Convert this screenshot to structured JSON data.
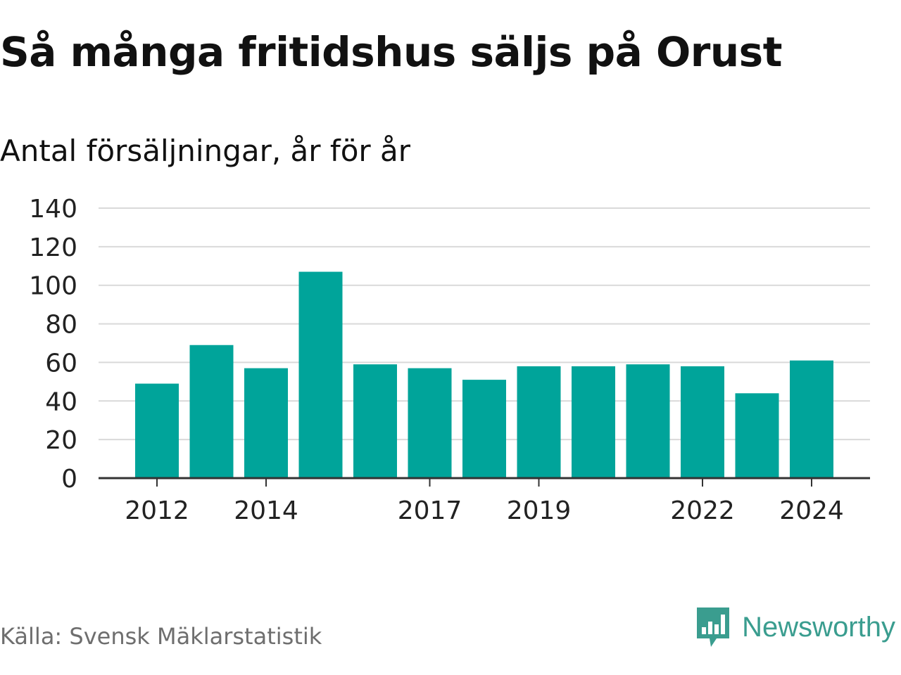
{
  "title": "Så många fritidshus säljs på Orust",
  "subtitle": "Antal försäljningar, år för år",
  "source": "Källa: Svensk Mäklarstatistik",
  "brand": "Newsworthy",
  "colors": {
    "bar": "#00a49a",
    "grid": "#d9d9d9",
    "axis": "#333333",
    "brand": "#3a9d8f"
  },
  "chart_data": {
    "type": "bar",
    "categories": [
      "2012",
      "2013",
      "2014",
      "2015",
      "2016",
      "2017",
      "2018",
      "2019",
      "2020",
      "2021",
      "2022",
      "2023",
      "2024"
    ],
    "values": [
      49,
      69,
      57,
      107,
      59,
      57,
      51,
      58,
      58,
      59,
      58,
      44,
      61
    ],
    "x_tick_labels": [
      "2012",
      "2014",
      "2017",
      "2019",
      "2022",
      "2024"
    ],
    "y_ticks": [
      0,
      20,
      40,
      60,
      80,
      100,
      120,
      140
    ],
    "ylim": [
      0,
      140
    ],
    "grid": true,
    "legend": "none"
  }
}
